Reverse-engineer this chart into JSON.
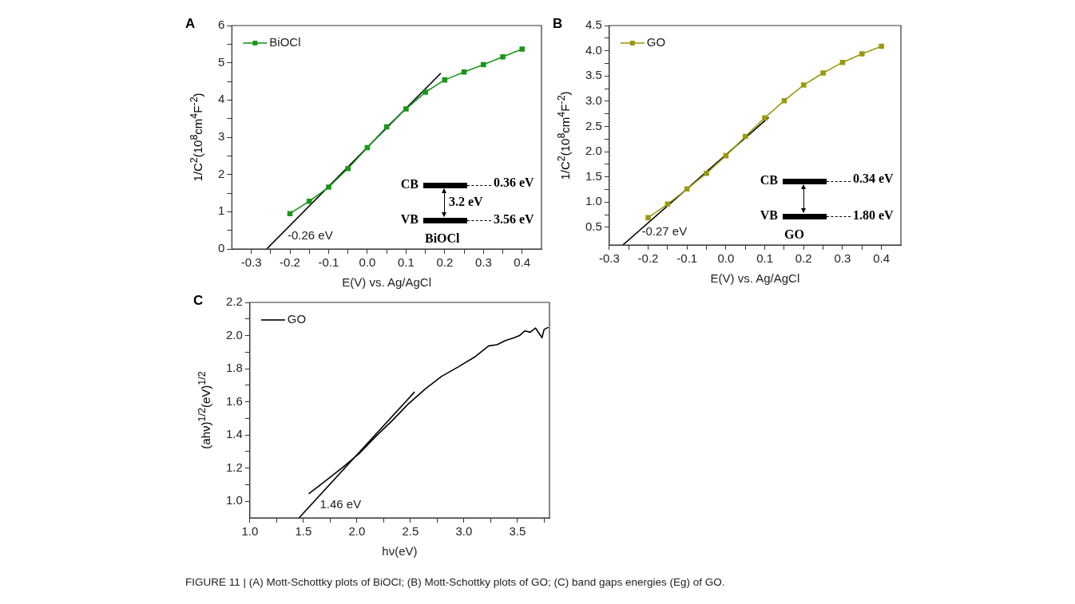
{
  "chart_data": [
    {
      "type": "line",
      "title": "A",
      "xlabel": "E(V) vs. Ag/AgCl",
      "ylabel": "1/C$^{2}$(10$^{8}$cm$^{4}$F$^{-2}$)",
      "legend": "top left",
      "marker": "square",
      "xlim": [
        -0.35,
        0.45
      ],
      "ylim": [
        0,
        6
      ],
      "xticks": [
        {
          "value": -0.3,
          "label": "-0.3"
        },
        {
          "value": -0.25,
          "label": null
        },
        {
          "value": -0.2,
          "label": "-0.2"
        },
        {
          "value": -0.15,
          "label": null
        },
        {
          "value": -0.1,
          "label": "-0.1"
        },
        {
          "value": -0.05,
          "label": null
        },
        {
          "value": 0,
          "label": "0.0"
        },
        {
          "value": 0.05,
          "label": null
        },
        {
          "value": 0.1,
          "label": "0.1"
        },
        {
          "value": 0.15,
          "label": null
        },
        {
          "value": 0.2,
          "label": "0.2"
        },
        {
          "value": 0.25,
          "label": null
        },
        {
          "value": 0.3,
          "label": "0.3"
        },
        {
          "value": 0.35,
          "label": null
        },
        {
          "value": 0.4,
          "label": "0.4"
        }
      ],
      "yticks": [
        {
          "value": 0,
          "label": "0"
        },
        {
          "value": 0.5,
          "label": null
        },
        {
          "value": 1,
          "label": "1"
        },
        {
          "value": 1.5,
          "label": null
        },
        {
          "value": 2,
          "label": "2"
        },
        {
          "value": 2.5,
          "label": null
        },
        {
          "value": 3,
          "label": "3"
        },
        {
          "value": 3.5,
          "label": null
        },
        {
          "value": 4,
          "label": "4"
        },
        {
          "value": 4.5,
          "label": null
        },
        {
          "value": 5,
          "label": "5"
        },
        {
          "value": 5.5,
          "label": null
        },
        {
          "value": 6,
          "label": "6"
        }
      ],
      "series": [
        {
          "name": "BiOCl",
          "color": "#1a961a",
          "x": [
            -0.2,
            -0.15,
            -0.1,
            -0.05,
            0,
            0.05,
            0.1,
            0.15,
            0.2,
            0.25,
            0.3,
            0.35,
            0.4
          ],
          "values": [
            0.95,
            1.28,
            1.66,
            2.16,
            2.72,
            3.28,
            3.76,
            4.21,
            4.54,
            4.75,
            4.95,
            5.16,
            5.37
          ]
        },
        {
          "type": "line",
          "marker": "none",
          "color": "#000000",
          "x": [
            -0.26,
            0.19
          ],
          "values": [
            0,
            4.72
          ]
        }
      ],
      "annotations": [
        {
          "text": "-0.26 eV",
          "x": -0.26,
          "y": 0
        },
        "CB",
        "VB",
        "0.36 eV",
        "3.56 eV",
        "3.2 eV",
        "BiOCl"
      ]
    },
    {
      "type": "line",
      "title": "B",
      "xlabel": "E(V) vs. Ag/AgCl",
      "ylabel": "1/C$^{2}$(10$^{8}$cm$^{4}$F$^{-2}$)",
      "legend": "top left",
      "marker": "square",
      "xlim": [
        -0.3,
        0.45
      ],
      "ylim": [
        0.15,
        4.5
      ],
      "xticks": [
        {
          "value": -0.3,
          "label": "-0.3"
        },
        {
          "value": -0.25,
          "label": null
        },
        {
          "value": -0.2,
          "label": "-0.2"
        },
        {
          "value": -0.15,
          "label": null
        },
        {
          "value": -0.1,
          "label": "-0.1"
        },
        {
          "value": -0.05,
          "label": null
        },
        {
          "value": 0,
          "label": "0.0"
        },
        {
          "value": 0.05,
          "label": null
        },
        {
          "value": 0.1,
          "label": "0.1"
        },
        {
          "value": 0.15,
          "label": null
        },
        {
          "value": 0.2,
          "label": "0.2"
        },
        {
          "value": 0.25,
          "label": null
        },
        {
          "value": 0.3,
          "label": "0.3"
        },
        {
          "value": 0.35,
          "label": null
        },
        {
          "value": 0.4,
          "label": "0.4"
        }
      ],
      "yticks": [
        {
          "value": 0.5,
          "label": "0.5"
        },
        {
          "value": 0.75,
          "label": null
        },
        {
          "value": 1,
          "label": "1.0"
        },
        {
          "value": 1.25,
          "label": null
        },
        {
          "value": 1.5,
          "label": "1.5"
        },
        {
          "value": 1.75,
          "label": null
        },
        {
          "value": 2,
          "label": "2.0"
        },
        {
          "value": 2.25,
          "label": null
        },
        {
          "value": 2.5,
          "label": "2.5"
        },
        {
          "value": 2.75,
          "label": null
        },
        {
          "value": 3,
          "label": "3.0"
        },
        {
          "value": 3.25,
          "label": null
        },
        {
          "value": 3.5,
          "label": "3.5"
        },
        {
          "value": 3.75,
          "label": null
        },
        {
          "value": 4,
          "label": "4.0"
        },
        {
          "value": 4.25,
          "label": null
        },
        {
          "value": 4.5,
          "label": "4.5"
        }
      ],
      "series": [
        {
          "name": "GO",
          "color": "#9a9a12",
          "x": [
            -0.2,
            -0.15,
            -0.1,
            -0.05,
            0,
            0.05,
            0.1,
            0.15,
            0.2,
            0.25,
            0.3,
            0.35,
            0.4
          ],
          "values": [
            0.69,
            0.96,
            1.26,
            1.57,
            1.92,
            2.3,
            2.67,
            3.01,
            3.32,
            3.56,
            3.77,
            3.94,
            4.09
          ]
        },
        {
          "type": "line",
          "marker": "none",
          "color": "#000000",
          "x": [
            -0.265,
            0.11
          ],
          "values": [
            0.15,
            2.68
          ]
        }
      ],
      "annotations": [
        {
          "text": "-0.27 eV",
          "x": -0.27,
          "y": 0.15
        },
        "CB",
        "VB",
        "0.34 eV",
        "1.80 eV",
        "GO"
      ]
    },
    {
      "type": "line",
      "title": "C",
      "xlabel": "hν(eV)",
      "ylabel": "(ahν)$^{1/2}$(eV)$^{1/2}$",
      "legend": "top left",
      "marker": "none",
      "xlim": [
        1.0,
        3.8
      ],
      "ylim": [
        0.9,
        2.2
      ],
      "xticks": [
        {
          "value": 1,
          "label": "1.0"
        },
        {
          "value": 1.25,
          "label": null
        },
        {
          "value": 1.5,
          "label": "1.5"
        },
        {
          "value": 1.75,
          "label": null
        },
        {
          "value": 2,
          "label": "2.0"
        },
        {
          "value": 2.25,
          "label": null
        },
        {
          "value": 2.5,
          "label": "2.5"
        },
        {
          "value": 2.75,
          "label": null
        },
        {
          "value": 3,
          "label": "3.0"
        },
        {
          "value": 3.25,
          "label": null
        },
        {
          "value": 3.5,
          "label": "3.5"
        },
        {
          "value": 3.75,
          "label": null
        }
      ],
      "yticks": [
        {
          "value": 1,
          "label": "1.0"
        },
        {
          "value": 1.1,
          "label": null
        },
        {
          "value": 1.2,
          "label": "1.2"
        },
        {
          "value": 1.3,
          "label": null
        },
        {
          "value": 1.4,
          "label": "1.4"
        },
        {
          "value": 1.5,
          "label": null
        },
        {
          "value": 1.6,
          "label": "1.6"
        },
        {
          "value": 1.7,
          "label": null
        },
        {
          "value": 1.8,
          "label": "1.8"
        },
        {
          "value": 1.9,
          "label": null
        },
        {
          "value": 2,
          "label": "2.0"
        },
        {
          "value": 2.1,
          "label": null
        },
        {
          "value": 2.2,
          "label": "2.2"
        }
      ],
      "series": [
        {
          "name": "GO",
          "color": "#000000",
          "x": [
            1.55,
            1.7,
            1.86,
            2.02,
            2.17,
            2.33,
            2.48,
            2.64,
            2.79,
            2.95,
            3.1,
            3.23,
            3.31,
            3.39,
            3.47,
            3.52,
            3.57,
            3.62,
            3.67,
            3.73,
            3.75,
            3.79
          ],
          "values": [
            1.045,
            1.12,
            1.2,
            1.287,
            1.387,
            1.487,
            1.587,
            1.678,
            1.753,
            1.812,
            1.87,
            1.937,
            1.945,
            1.97,
            1.987,
            2.0,
            2.028,
            2.02,
            2.045,
            1.987,
            2.037,
            2.05
          ]
        },
        {
          "type": "line",
          "color": "#000000",
          "x": [
            1.46,
            2.54
          ],
          "values": [
            0.9,
            1.66
          ]
        }
      ],
      "annotations": [
        {
          "text": "1.46 eV",
          "x": 1.46,
          "y": 0.9
        },
        "FIGURE 11 | (A) Mott-Schottky plots of BiOCl; (B) Mott-Schottky plots of GO; (C) band gaps energies (Eg) of GO."
      ]
    }
  ]
}
